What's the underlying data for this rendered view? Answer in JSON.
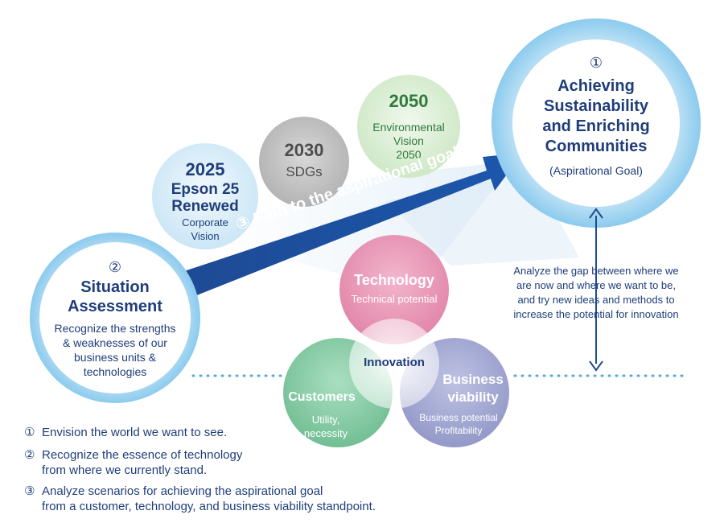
{
  "goal": {
    "number": "①",
    "title_lines": [
      "Achieving",
      "Sustainability",
      "and Enriching",
      "Communities"
    ],
    "subtitle": "(Aspirational Goal)"
  },
  "situation": {
    "number": "②",
    "title_lines": [
      "Situation",
      "Assessment"
    ],
    "body_lines": [
      "Recognize the strengths",
      "& weaknesses of our",
      "business units &",
      "technologies"
    ]
  },
  "milestones": [
    {
      "year": "2025",
      "lines": [
        "Epson 25",
        "Renewed"
      ],
      "sub_lines": [
        "Corporate",
        "Vision"
      ]
    },
    {
      "year": "2030",
      "lines": [
        "SDGs"
      ]
    },
    {
      "year": "2050",
      "lines": [
        "Environmental",
        "Vision",
        "2050"
      ]
    }
  ],
  "path_label": "③ Path to the aspirational goal",
  "gap_text_lines": [
    "Analyze the gap between where we",
    "are now and where we want to be,",
    "and try new ideas and methods to",
    "increase the potential for innovation"
  ],
  "venn": {
    "center": "Innovation",
    "technology": {
      "title": "Technology",
      "sub_lines": [
        "Technical potential"
      ]
    },
    "customers": {
      "title": "Customers",
      "sub_lines": [
        "Utility,",
        "necessity"
      ]
    },
    "business": {
      "title_lines": [
        "Business",
        "viability"
      ],
      "sub_lines": [
        "Business potential",
        "Profitability"
      ]
    }
  },
  "legend": [
    {
      "num": "①",
      "lines": [
        "Envision the world we want to see."
      ]
    },
    {
      "num": "②",
      "lines": [
        "Recognize the essence of technology",
        "from where we currently stand."
      ]
    },
    {
      "num": "③",
      "lines": [
        "Analyze scenarios for achieving the aspirational goal",
        "from a customer, technology, and business viability standpoint."
      ]
    }
  ],
  "colors": {
    "navy": "#1f3d7a",
    "arrow_blue": "#1d4f9c",
    "ring_blue": "#a7d5ef",
    "tech_pink": "#e68fb0",
    "customer_green": "#7cc79e",
    "business_purple": "#9aa0cf",
    "grey_circle": "#bdbdbd",
    "green_text": "#2f7a3e"
  }
}
